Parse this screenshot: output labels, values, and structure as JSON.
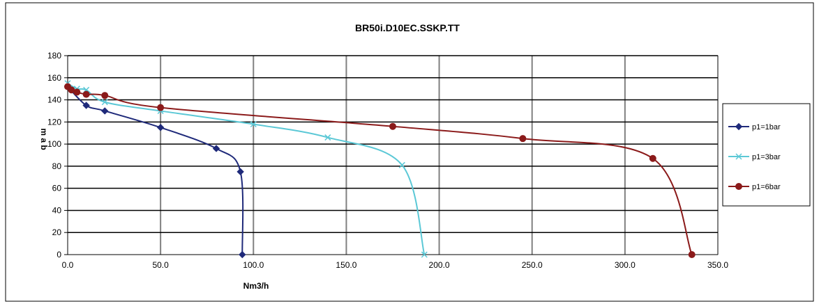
{
  "chart_data": {
    "type": "line",
    "title": "BR50i.D10EC.SSKP.TT",
    "xlabel": "Nm3/h",
    "ylabel": "m a b",
    "xlim": [
      0,
      350
    ],
    "ylim": [
      0,
      180
    ],
    "xticks": [
      "0.0",
      "50.0",
      "100.0",
      "150.0",
      "200.0",
      "250.0",
      "300.0",
      "350.0"
    ],
    "yticks": [
      "0",
      "20",
      "40",
      "60",
      "80",
      "100",
      "120",
      "140",
      "160",
      "180"
    ],
    "grid": true,
    "legend_position": "right",
    "series": [
      {
        "name": "p1=1bar",
        "color": "#1f2a7a",
        "marker": "diamond",
        "x": [
          0,
          10,
          20,
          50,
          80,
          93,
          94
        ],
        "y": [
          152,
          135,
          130,
          115,
          96,
          75,
          0
        ]
      },
      {
        "name": "p1=3bar",
        "color": "#5bc8d6",
        "marker": "x",
        "x": [
          0,
          5,
          10,
          20,
          50,
          100,
          140,
          180,
          192
        ],
        "y": [
          155,
          150,
          149,
          138,
          130,
          118,
          106,
          81,
          0
        ]
      },
      {
        "name": "p1=6bar",
        "color": "#8b1a1a",
        "marker": "circle",
        "x": [
          0,
          2,
          5,
          10,
          20,
          50,
          175,
          245,
          315,
          336
        ],
        "y": [
          152,
          149,
          147,
          145,
          144,
          133,
          116,
          105,
          87,
          0
        ]
      }
    ]
  }
}
